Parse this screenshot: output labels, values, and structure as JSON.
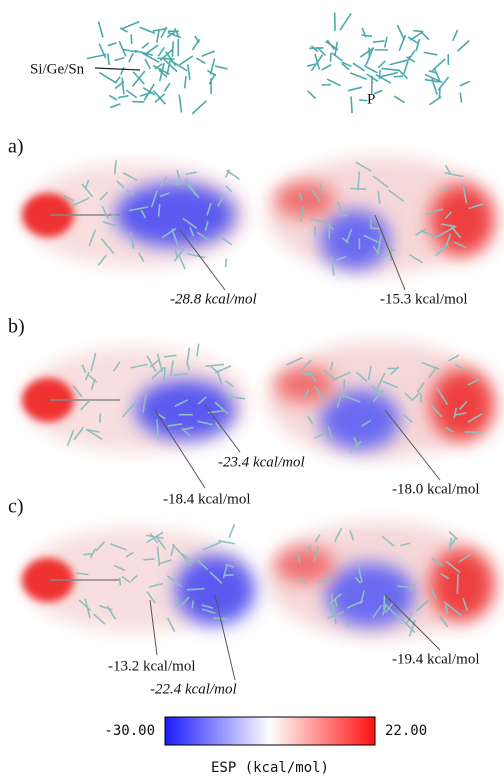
{
  "top": {
    "left_label": "Si/Ge/Sn",
    "right_label": "P"
  },
  "panels": [
    {
      "label": "a)",
      "annotations": [
        "-28.8 kcal/mol",
        "-15.3 kcal/mol"
      ]
    },
    {
      "label": "b)",
      "annotations": [
        "-23.4 kcal/mol",
        "-18.4 kcal/mol",
        "-18.0 kcal/mol"
      ]
    },
    {
      "label": "c)",
      "annotations": [
        "-13.2 kcal/mol",
        "-22.4 kcal/mol",
        "-19.4 kcal/mol"
      ]
    }
  ],
  "colorbar": {
    "min": "-30.00",
    "max": "22.00",
    "title": "ESP (kcal/mol)"
  }
}
